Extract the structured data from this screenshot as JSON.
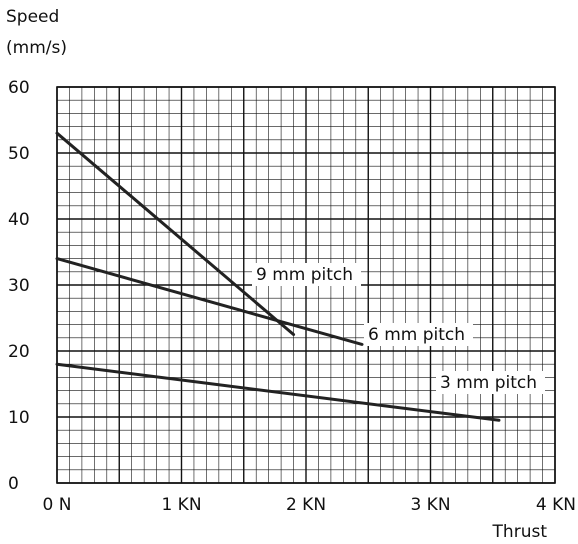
{
  "chart_data": {
    "type": "line",
    "ylabel": [
      "Speed",
      "(mm/s)"
    ],
    "xlabel": "Thrust",
    "x_ticks": [
      "0 N",
      "1 KN",
      "2 KN",
      "3 KN",
      "4 KN"
    ],
    "y_ticks": [
      "0",
      "10",
      "20",
      "30",
      "40",
      "50",
      "60"
    ],
    "xlim": [
      0,
      4
    ],
    "ylim": [
      0,
      60
    ],
    "grid": true,
    "line_color": "#222222",
    "series": [
      {
        "name": "9 mm pitch",
        "x": [
          0,
          1.9
        ],
        "y": [
          53,
          22.5
        ]
      },
      {
        "name": "6 mm pitch",
        "x": [
          0,
          2.45
        ],
        "y": [
          34,
          21
        ]
      },
      {
        "name": "3 mm pitch",
        "x": [
          0,
          3.55
        ],
        "y": [
          18,
          9.5
        ]
      }
    ]
  }
}
